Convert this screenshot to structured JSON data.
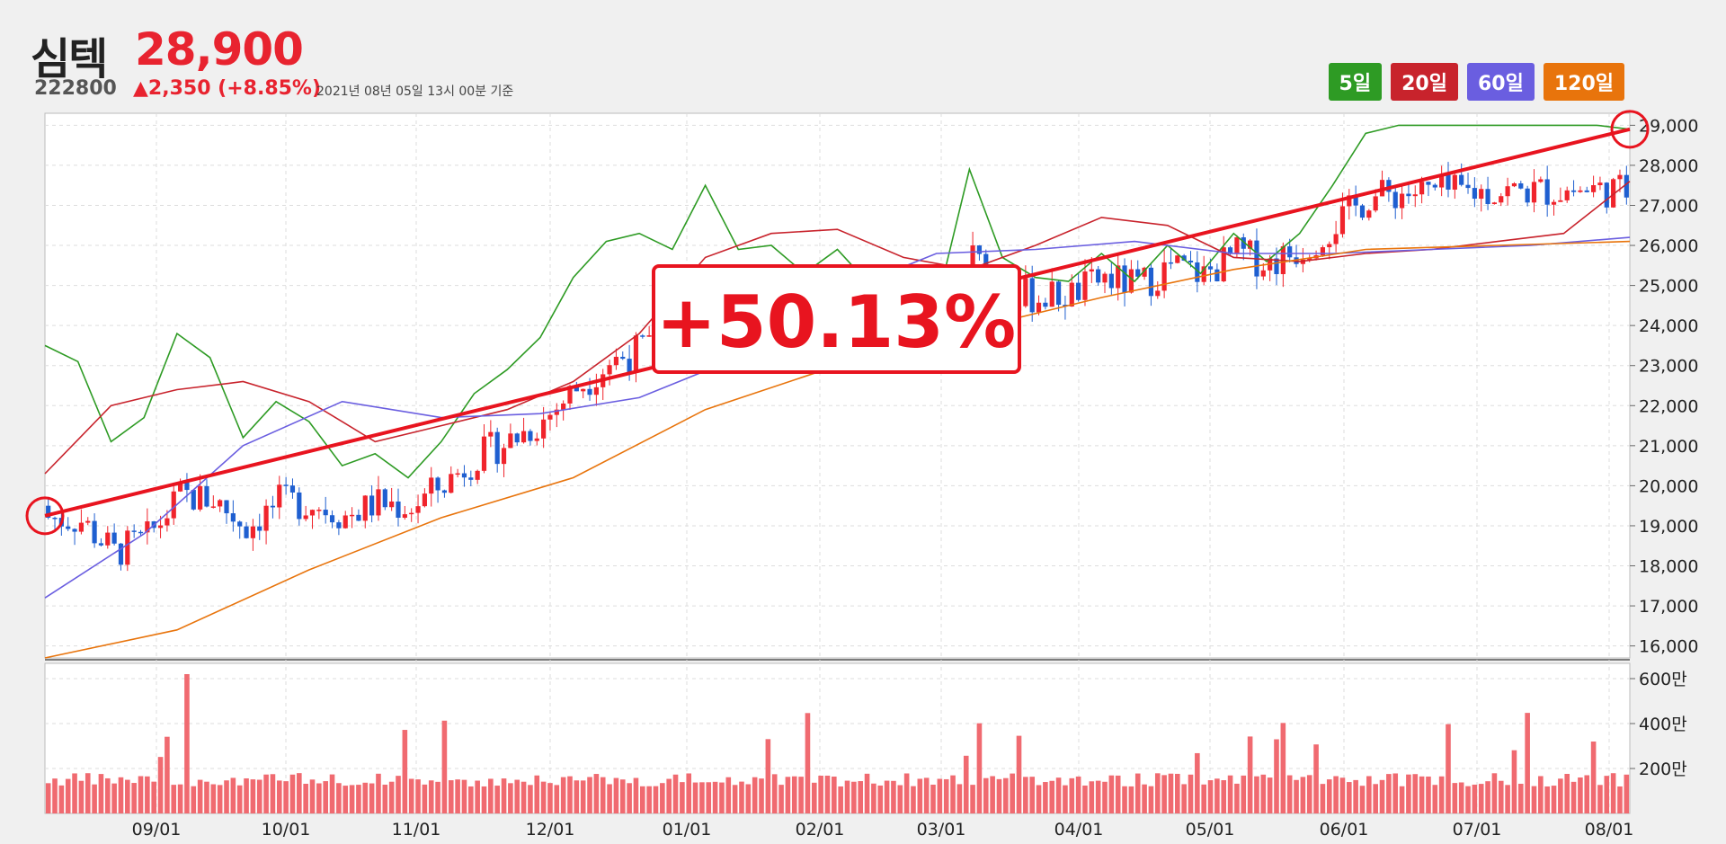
{
  "stock": {
    "name": "심텍",
    "price": "28,900",
    "code": "222800",
    "change": "▲2,350 (+8.85%)",
    "asof": "2021년 08년 05일 13시 00분 기준"
  },
  "legend": [
    {
      "label": "5일",
      "color": "#2e9b24"
    },
    {
      "label": "20일",
      "color": "#c8232c"
    },
    {
      "label": "60일",
      "color": "#6a5ee0"
    },
    {
      "label": "120일",
      "color": "#e8740c"
    }
  ],
  "annotation": "+50.13%",
  "chart_data": {
    "type": "line",
    "price_ylim": [
      15700,
      29300
    ],
    "price_ticks": [
      "16,000",
      "17,000",
      "18,000",
      "19,000",
      "20,000",
      "21,000",
      "22,000",
      "23,000",
      "24,000",
      "25,000",
      "26,000",
      "27,000",
      "28,000",
      "29,000"
    ],
    "volume_ticks": [
      "200만",
      "400만",
      "600만"
    ],
    "x_ticks": [
      "09/01",
      "10/01",
      "11/01",
      "12/01",
      "01/01",
      "02/01",
      "03/01",
      "04/01",
      "05/01",
      "06/01",
      "07/01",
      "08/01"
    ],
    "trend": {
      "start": 19250,
      "end": 28900
    },
    "series": [
      {
        "name": "5일",
        "color": "#2e9b24",
        "x": [
          0,
          5,
          10,
          15,
          20,
          25,
          30,
          35,
          40,
          45,
          50,
          55,
          60,
          65,
          70,
          75,
          80,
          85,
          90,
          95,
          100,
          105,
          110,
          115,
          120,
          125,
          130,
          135,
          140,
          145,
          150,
          155,
          160,
          165,
          170,
          175,
          180,
          185,
          190,
          195,
          200,
          205,
          210,
          215,
          220,
          225,
          230,
          235,
          240
        ],
        "values": [
          23500,
          23100,
          21100,
          21700,
          23800,
          23200,
          21200,
          22100,
          21600,
          20500,
          20800,
          20200,
          21100,
          22300,
          22900,
          23700,
          25200,
          26100,
          26300,
          25900,
          27500,
          25900,
          26000,
          25300,
          25900,
          25000,
          25100,
          24500,
          27900,
          25700,
          25200,
          25100,
          25800,
          25100,
          26000,
          25300,
          26300,
          25600,
          26300,
          27500,
          28800,
          29000,
          29000,
          29000,
          29000,
          29000,
          29000,
          29000,
          28900
        ]
      },
      {
        "name": "20일",
        "color": "#c8232c",
        "x": [
          0,
          10,
          20,
          30,
          40,
          50,
          60,
          70,
          80,
          90,
          100,
          110,
          120,
          130,
          140,
          150,
          160,
          170,
          180,
          190,
          200,
          210,
          220,
          230,
          240
        ],
        "values": [
          20300,
          22000,
          22400,
          22600,
          22100,
          21100,
          21500,
          21900,
          22600,
          23800,
          25700,
          26300,
          26400,
          25700,
          25400,
          26000,
          26700,
          26500,
          25700,
          25600,
          25800,
          25900,
          26100,
          26300,
          27600
        ]
      },
      {
        "name": "60일",
        "color": "#6a5ee0",
        "x": [
          0,
          15,
          30,
          45,
          60,
          75,
          90,
          105,
          120,
          135,
          150,
          165,
          180,
          195,
          210,
          225,
          240
        ],
        "values": [
          17200,
          18800,
          21000,
          22100,
          21700,
          21800,
          22200,
          23200,
          24800,
          25800,
          25900,
          26100,
          25800,
          25800,
          25900,
          26000,
          26200
        ]
      },
      {
        "name": "120일",
        "color": "#e8740c",
        "x": [
          0,
          20,
          40,
          60,
          80,
          100,
          120,
          140,
          160,
          180,
          200,
          220,
          240
        ],
        "values": [
          15700,
          16400,
          17900,
          19200,
          20200,
          21900,
          23000,
          23900,
          24700,
          25400,
          25900,
          26000,
          26100
        ]
      }
    ]
  }
}
